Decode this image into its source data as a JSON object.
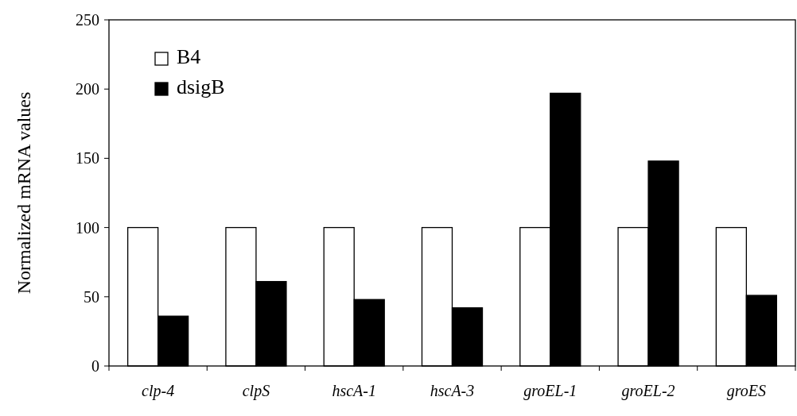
{
  "chart_data": {
    "type": "bar",
    "ylabel": "Normalized mRNA values",
    "categories": [
      "clp-4",
      "clpS",
      "hscA-1",
      "hscA-3",
      "groEL-1",
      "groEL-2",
      "groES"
    ],
    "series": [
      {
        "name": "B4",
        "color": "#ffffff",
        "values": [
          100,
          100,
          100,
          100,
          100,
          100,
          100
        ]
      },
      {
        "name": "dsigB",
        "color": "#000000",
        "values": [
          36,
          61,
          48,
          42,
          197,
          148,
          51
        ]
      }
    ],
    "ylim": [
      0,
      250
    ],
    "yticks": [
      0,
      50,
      100,
      150,
      200,
      250
    ],
    "grid": false,
    "legend": "top left"
  }
}
